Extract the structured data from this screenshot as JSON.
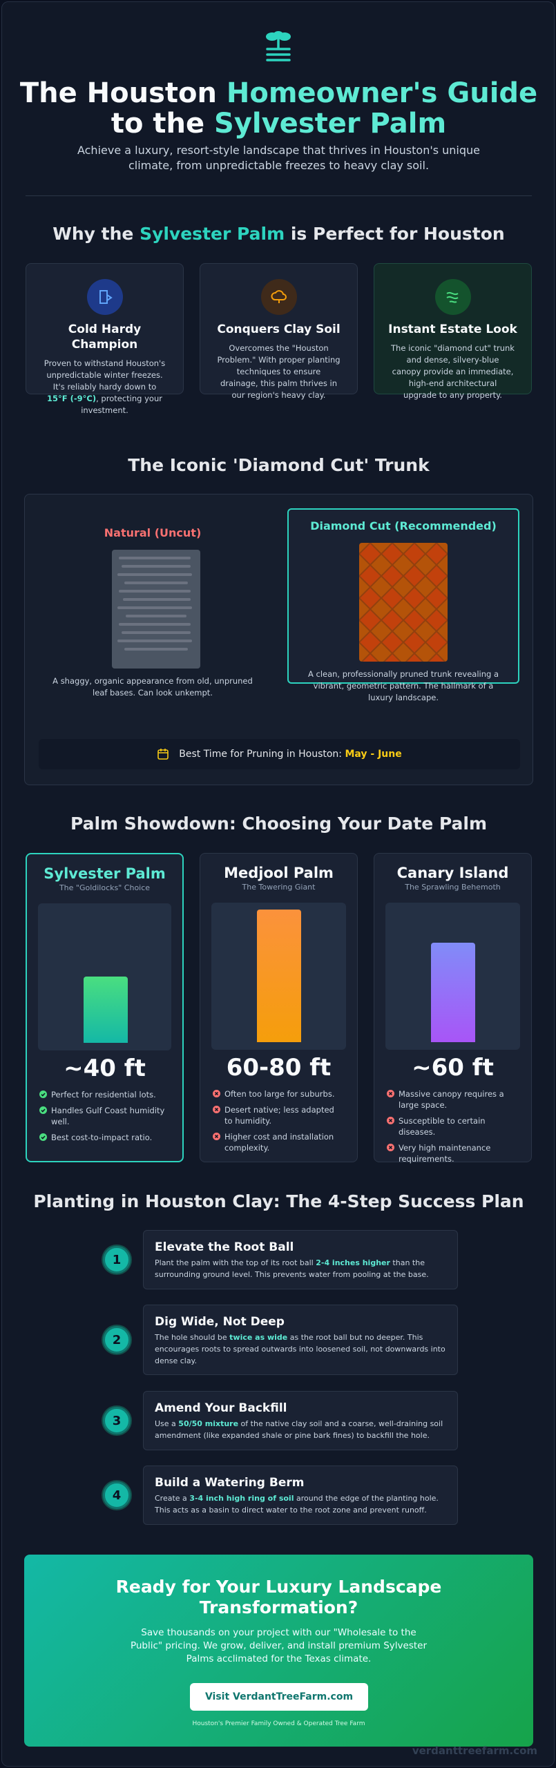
{
  "header": {
    "title": [
      "The Houston ",
      "Homeowner's Guide",
      "to the ",
      "Sylvester Palm"
    ],
    "subtitle": "Achieve a luxury, resort-style landscape that thrives in Houston's unique climate, from unpredictable freezes to heavy clay soil."
  },
  "why": {
    "heading": [
      "Why the ",
      "Sylvester Palm",
      " is Perfect for Houston"
    ],
    "cards": [
      {
        "title": "Cold Hardy Champion",
        "text": [
          "Proven to withstand Houston's unpredictable winter freezes. It's reliably hardy down to ",
          "15°F (-9°C)",
          ", protecting your investment."
        ]
      },
      {
        "title": "Conquers Clay Soil",
        "text": [
          "Overcomes the \"Houston Problem.\" With proper planting techniques to ensure drainage, this palm thrives in our region's heavy clay."
        ]
      },
      {
        "title": "Instant Estate Look",
        "text": [
          "The iconic \"diamond cut\" trunk and dense, silvery-blue canopy provide an immediate, high-end architectural upgrade to any property."
        ]
      }
    ]
  },
  "trunk": {
    "heading": "The Iconic 'Diamond Cut' Trunk",
    "natural": {
      "title": "Natural (Uncut)",
      "text": "A shaggy, organic appearance from old, unpruned leaf bases. Can look unkempt."
    },
    "diamond": {
      "title": "Diamond Cut (Recommended)",
      "text": "A clean, professionally pruned trunk revealing a vibrant, geometric pattern. The hallmark of a luxury landscape."
    },
    "pruning": {
      "label": "Best Time for Pruning in Houston: ",
      "value": "May - June"
    }
  },
  "showdown": {
    "heading": "Palm Showdown: Choosing Your Date Palm",
    "palms": [
      {
        "name": "Sylvester Palm",
        "tagline": "The \"Goldilocks\" Choice",
        "height": "~40 ft",
        "points": [
          "Perfect for residential lots.",
          "Handles Gulf Coast humidity well.",
          "Best cost-to-impact ratio."
        ]
      },
      {
        "name": "Medjool Palm",
        "tagline": "The Towering Giant",
        "height": "60-80 ft",
        "points": [
          "Often too large for suburbs.",
          "Desert native; less adapted to humidity.",
          "Higher cost and installation complexity."
        ]
      },
      {
        "name": "Canary Island",
        "tagline": "The Sprawling Behemoth",
        "height": "~60 ft",
        "points": [
          "Massive canopy requires a large space.",
          "Susceptible to certain diseases.",
          "Very high maintenance requirements."
        ]
      }
    ]
  },
  "steps": {
    "heading": "Planting in Houston Clay: The 4-Step Success Plan",
    "items": [
      {
        "number": 1,
        "title": "Elevate the Root Ball",
        "text": [
          "Plant the palm with the top of its root ball ",
          "2-4 inches higher",
          " than the surrounding ground level. This prevents water from pooling at the base."
        ]
      },
      {
        "number": 2,
        "title": "Dig Wide, Not Deep",
        "text": [
          "The hole should be ",
          "twice as wide",
          " as the root ball but no deeper. This encourages roots to spread outwards into loosened soil, not downwards into dense clay."
        ]
      },
      {
        "number": 3,
        "title": "Amend Your Backfill",
        "text": [
          "Use a ",
          "50/50 mixture",
          " of the native clay soil and a coarse, well-draining soil amendment (like expanded shale or pine bark fines) to backfill the hole."
        ]
      },
      {
        "number": 4,
        "title": "Build a Watering Berm",
        "text": [
          "Create a ",
          "3-4 inch high ring of soil",
          " around the edge of the planting hole. This acts as a basin to direct water to the root zone and prevent runoff."
        ]
      }
    ]
  },
  "cta": {
    "heading": "Ready for Your Luxury Landscape Transformation?",
    "text": "Save thousands on your project with our \"Wholesale to the Public\" pricing. We grow, deliver, and install premium Sylvester Palms acclimated for the Texas climate.",
    "button": "Visit VerdantTreeFarm.com",
    "note": "Houston's Premier Family Owned & Operated Tree Farm"
  },
  "footer": {
    "watermark": "verdanttreefarm.com"
  }
}
